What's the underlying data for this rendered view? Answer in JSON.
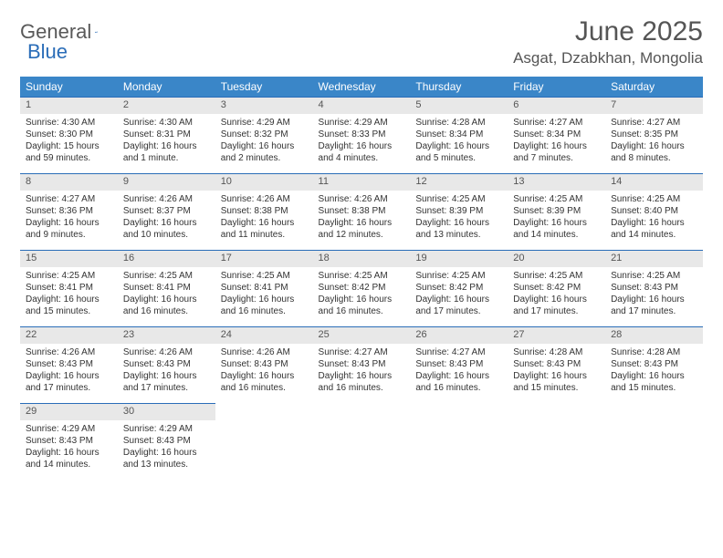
{
  "logo": {
    "general": "General",
    "blue": "Blue"
  },
  "title": "June 2025",
  "location": "Asgat, Dzabkhan, Mongolia",
  "colors": {
    "header_bg": "#3a86c8",
    "header_text": "#ffffff",
    "daynum_bg": "#e8e8e8",
    "border": "#2a6db8",
    "text": "#333333",
    "title_text": "#555555"
  },
  "weekdays": [
    "Sunday",
    "Monday",
    "Tuesday",
    "Wednesday",
    "Thursday",
    "Friday",
    "Saturday"
  ],
  "weeks": [
    [
      {
        "n": "1",
        "sr": "4:30 AM",
        "ss": "8:30 PM",
        "dl": "15 hours and 59 minutes."
      },
      {
        "n": "2",
        "sr": "4:30 AM",
        "ss": "8:31 PM",
        "dl": "16 hours and 1 minute."
      },
      {
        "n": "3",
        "sr": "4:29 AM",
        "ss": "8:32 PM",
        "dl": "16 hours and 2 minutes."
      },
      {
        "n": "4",
        "sr": "4:29 AM",
        "ss": "8:33 PM",
        "dl": "16 hours and 4 minutes."
      },
      {
        "n": "5",
        "sr": "4:28 AM",
        "ss": "8:34 PM",
        "dl": "16 hours and 5 minutes."
      },
      {
        "n": "6",
        "sr": "4:27 AM",
        "ss": "8:34 PM",
        "dl": "16 hours and 7 minutes."
      },
      {
        "n": "7",
        "sr": "4:27 AM",
        "ss": "8:35 PM",
        "dl": "16 hours and 8 minutes."
      }
    ],
    [
      {
        "n": "8",
        "sr": "4:27 AM",
        "ss": "8:36 PM",
        "dl": "16 hours and 9 minutes."
      },
      {
        "n": "9",
        "sr": "4:26 AM",
        "ss": "8:37 PM",
        "dl": "16 hours and 10 minutes."
      },
      {
        "n": "10",
        "sr": "4:26 AM",
        "ss": "8:38 PM",
        "dl": "16 hours and 11 minutes."
      },
      {
        "n": "11",
        "sr": "4:26 AM",
        "ss": "8:38 PM",
        "dl": "16 hours and 12 minutes."
      },
      {
        "n": "12",
        "sr": "4:25 AM",
        "ss": "8:39 PM",
        "dl": "16 hours and 13 minutes."
      },
      {
        "n": "13",
        "sr": "4:25 AM",
        "ss": "8:39 PM",
        "dl": "16 hours and 14 minutes."
      },
      {
        "n": "14",
        "sr": "4:25 AM",
        "ss": "8:40 PM",
        "dl": "16 hours and 14 minutes."
      }
    ],
    [
      {
        "n": "15",
        "sr": "4:25 AM",
        "ss": "8:41 PM",
        "dl": "16 hours and 15 minutes."
      },
      {
        "n": "16",
        "sr": "4:25 AM",
        "ss": "8:41 PM",
        "dl": "16 hours and 16 minutes."
      },
      {
        "n": "17",
        "sr": "4:25 AM",
        "ss": "8:41 PM",
        "dl": "16 hours and 16 minutes."
      },
      {
        "n": "18",
        "sr": "4:25 AM",
        "ss": "8:42 PM",
        "dl": "16 hours and 16 minutes."
      },
      {
        "n": "19",
        "sr": "4:25 AM",
        "ss": "8:42 PM",
        "dl": "16 hours and 17 minutes."
      },
      {
        "n": "20",
        "sr": "4:25 AM",
        "ss": "8:42 PM",
        "dl": "16 hours and 17 minutes."
      },
      {
        "n": "21",
        "sr": "4:25 AM",
        "ss": "8:43 PM",
        "dl": "16 hours and 17 minutes."
      }
    ],
    [
      {
        "n": "22",
        "sr": "4:26 AM",
        "ss": "8:43 PM",
        "dl": "16 hours and 17 minutes."
      },
      {
        "n": "23",
        "sr": "4:26 AM",
        "ss": "8:43 PM",
        "dl": "16 hours and 17 minutes."
      },
      {
        "n": "24",
        "sr": "4:26 AM",
        "ss": "8:43 PM",
        "dl": "16 hours and 16 minutes."
      },
      {
        "n": "25",
        "sr": "4:27 AM",
        "ss": "8:43 PM",
        "dl": "16 hours and 16 minutes."
      },
      {
        "n": "26",
        "sr": "4:27 AM",
        "ss": "8:43 PM",
        "dl": "16 hours and 16 minutes."
      },
      {
        "n": "27",
        "sr": "4:28 AM",
        "ss": "8:43 PM",
        "dl": "16 hours and 15 minutes."
      },
      {
        "n": "28",
        "sr": "4:28 AM",
        "ss": "8:43 PM",
        "dl": "16 hours and 15 minutes."
      }
    ],
    [
      {
        "n": "29",
        "sr": "4:29 AM",
        "ss": "8:43 PM",
        "dl": "16 hours and 14 minutes."
      },
      {
        "n": "30",
        "sr": "4:29 AM",
        "ss": "8:43 PM",
        "dl": "16 hours and 13 minutes."
      },
      null,
      null,
      null,
      null,
      null
    ]
  ],
  "labels": {
    "sunrise": "Sunrise:",
    "sunset": "Sunset:",
    "daylight": "Daylight:"
  }
}
